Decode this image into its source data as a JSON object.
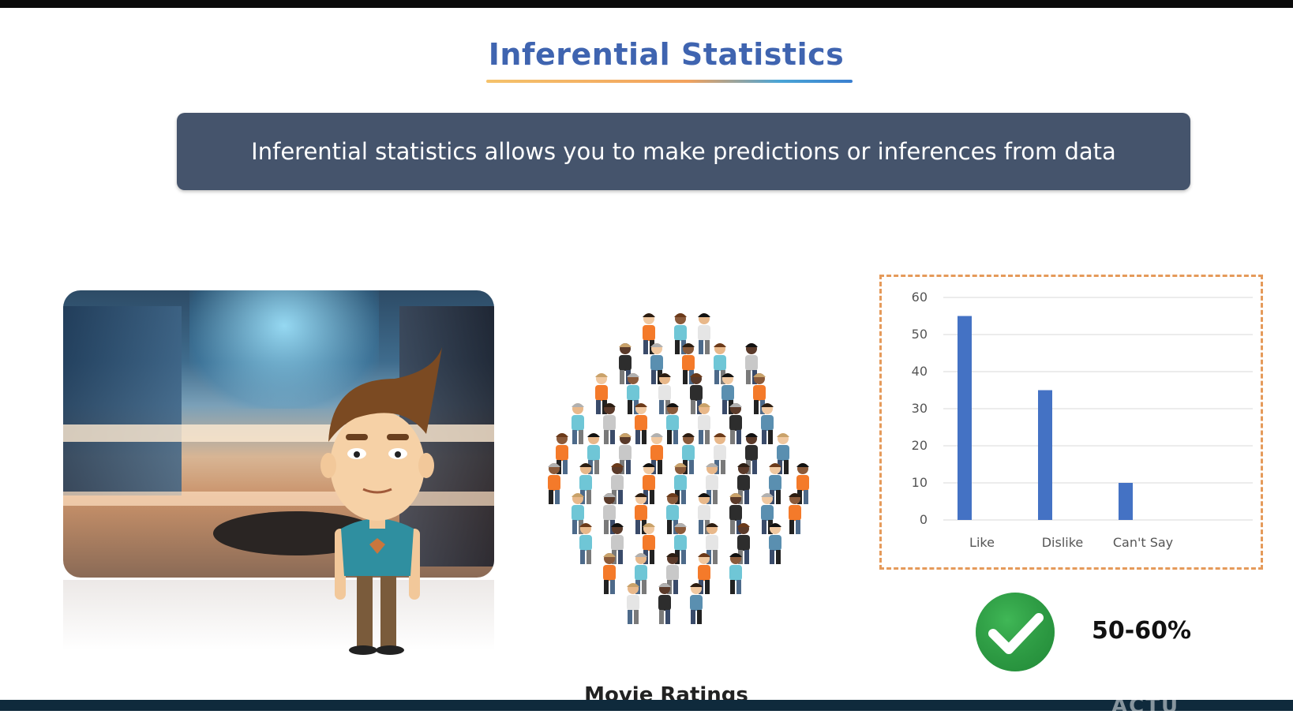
{
  "slide": {
    "title": "Inferential Statistics",
    "definition": "Inferential statistics allows you to make predictions or inferences from data",
    "result_percent": "50-60%",
    "caption": "Movie Ratings",
    "watermark": "ACTU"
  },
  "icons": {
    "check": "check-circle-icon",
    "man": "cartoon-man-illustration",
    "crowd": "crowd-of-people-illustration",
    "mall": "shopping-mall-photo"
  },
  "colors": {
    "title": "#3f64b0",
    "banner": "#45546c",
    "bar": "#4472c4",
    "chart_border": "#e59a5a",
    "check": "#2ea043"
  },
  "chart_data": {
    "type": "bar",
    "categories": [
      "Like",
      "Dislike",
      "Can't Say"
    ],
    "values": [
      55,
      35,
      10
    ],
    "yticks": [
      0,
      10,
      20,
      30,
      40,
      50,
      60
    ],
    "ylim": [
      0,
      60
    ],
    "grid": true,
    "title": "",
    "xlabel": "",
    "ylabel": ""
  }
}
